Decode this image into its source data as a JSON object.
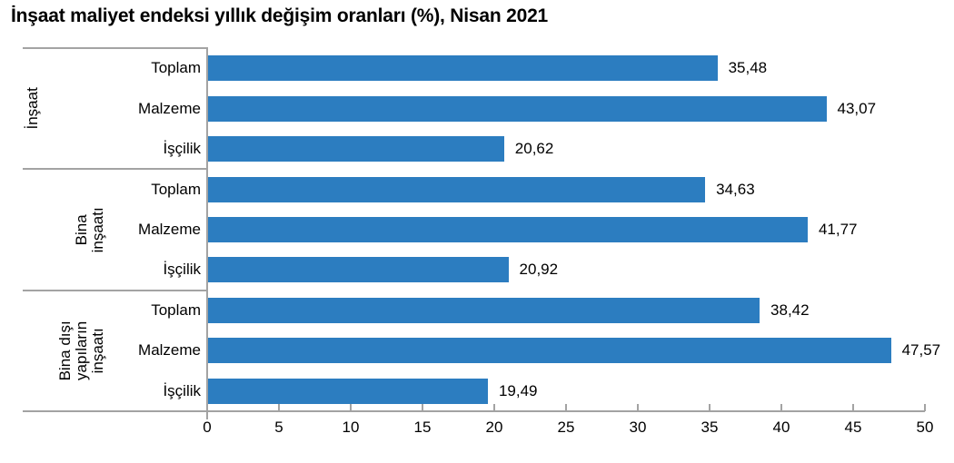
{
  "title": "İnşaat maliyet endeksi yıllık değişim oranları (%), Nisan 2021",
  "chart_data": {
    "type": "bar",
    "orientation": "horizontal",
    "title": "İnşaat maliyet endeksi yıllık değişim oranları (%), Nisan 2021",
    "unit": "%",
    "period": "Nisan 2021",
    "bar_color": "#2c7dc0",
    "axis_color": "#a3a3a3",
    "text_color": "#000000",
    "grid": false,
    "legend": false,
    "x_axis": {
      "min": 0,
      "max": 50,
      "tick_step": 5,
      "ticks": [
        0,
        5,
        10,
        15,
        20,
        25,
        30,
        35,
        40,
        45,
        50
      ]
    },
    "groups": [
      {
        "label": "İnşaat",
        "label_lines": [
          "İnşaat"
        ],
        "items": [
          {
            "category": "Toplam",
            "value": 35.48,
            "value_label": "35,48"
          },
          {
            "category": "Malzeme",
            "value": 43.07,
            "value_label": "43,07"
          },
          {
            "category": "İşçilik",
            "value": 20.62,
            "value_label": "20,62"
          }
        ]
      },
      {
        "label": "Bina inşaatı",
        "label_lines": [
          "Bina",
          "inşaatı"
        ],
        "items": [
          {
            "category": "Toplam",
            "value": 34.63,
            "value_label": "34,63"
          },
          {
            "category": "Malzeme",
            "value": 41.77,
            "value_label": "41,77"
          },
          {
            "category": "İşçilik",
            "value": 20.92,
            "value_label": "20,92"
          }
        ]
      },
      {
        "label": "Bina dışı yapıların inşaatı",
        "label_lines": [
          "Bina dışı",
          "yapıların",
          "inşaatı"
        ],
        "items": [
          {
            "category": "Toplam",
            "value": 38.42,
            "value_label": "38,42"
          },
          {
            "category": "Malzeme",
            "value": 47.57,
            "value_label": "47,57"
          },
          {
            "category": "İşçilik",
            "value": 19.49,
            "value_label": "19,49"
          }
        ]
      }
    ]
  }
}
